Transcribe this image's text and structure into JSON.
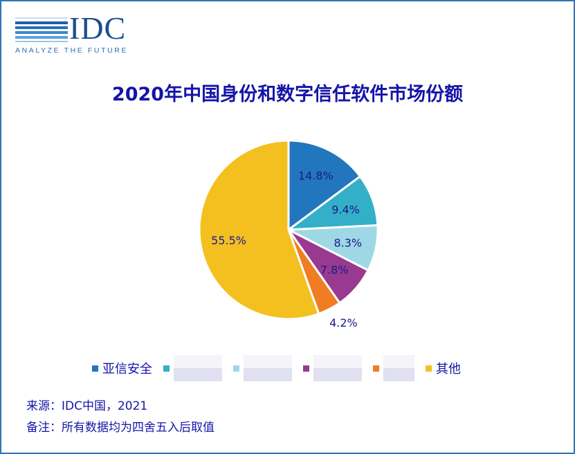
{
  "logo": {
    "text": "IDC",
    "tagline": "ANALYZE THE FUTURE"
  },
  "chart_data": {
    "type": "pie",
    "title": "2020年中国身份和数字信任软件市场份额",
    "slices": [
      {
        "label": "亚信安全",
        "value": 14.8,
        "display": "14.8%",
        "color": "#2176bd"
      },
      {
        "label": "",
        "value": 9.4,
        "display": "9.4%",
        "color": "#34afc8"
      },
      {
        "label": "",
        "value": 8.3,
        "display": "8.3%",
        "color": "#9fd8e5"
      },
      {
        "label": "",
        "value": 7.8,
        "display": "7.8%",
        "color": "#983a8f"
      },
      {
        "label": "",
        "value": 4.2,
        "display": "4.2%",
        "color": "#f07d21"
      },
      {
        "label": "其他",
        "value": 55.5,
        "display": "55.5%",
        "color": "#f4c020"
      }
    ],
    "legend_position": "bottom"
  },
  "notes": {
    "source": "来源：IDC中国，2021",
    "remark": "备注：所有数据均为四舍五入后取值"
  }
}
